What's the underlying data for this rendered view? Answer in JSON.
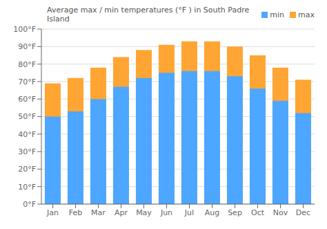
{
  "chart_data": {
    "type": "bar",
    "title": "Average max / min temperatures (°F ) in South Padre Island",
    "categories": [
      "Jan",
      "Feb",
      "Mar",
      "Apr",
      "May",
      "Jun",
      "Jul",
      "Aug",
      "Sep",
      "Oct",
      "Nov",
      "Dec"
    ],
    "series": [
      {
        "name": "min",
        "color": "#4da6ff",
        "values": [
          50,
          53,
          60,
          67,
          72,
          75,
          76,
          76,
          73,
          66,
          59,
          52
        ]
      },
      {
        "name": "max",
        "color": "#ffa533",
        "values": [
          69,
          72,
          78,
          84,
          88,
          91,
          93,
          93,
          90,
          85,
          78,
          71
        ]
      }
    ],
    "ylim": [
      0,
      100
    ],
    "yticks": [
      {
        "value": 0,
        "label": "0°F"
      },
      {
        "value": 10,
        "label": "10°F"
      },
      {
        "value": 20,
        "label": "20°F"
      },
      {
        "value": 30,
        "label": "30°F"
      },
      {
        "value": 40,
        "label": "40°F"
      },
      {
        "value": 50,
        "label": "50°F"
      },
      {
        "value": 60,
        "label": "60°F"
      },
      {
        "value": 70,
        "label": "70°F"
      },
      {
        "value": 80,
        "label": "80°F"
      },
      {
        "value": 90,
        "label": "90°F"
      },
      {
        "value": 100,
        "label": "100°F"
      }
    ],
    "grid": true
  }
}
